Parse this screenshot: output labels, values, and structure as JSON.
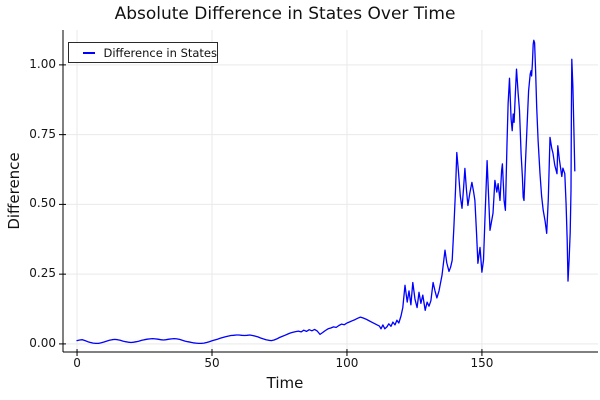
{
  "title": "Absolute Difference in States Over Time",
  "xlabel": "Time",
  "ylabel": "Difference",
  "legend": {
    "label": "Difference in States",
    "position": "top-left"
  },
  "colors": {
    "line": "#0000ff",
    "grid": "#e9e9e9",
    "spine": "#000000",
    "text": "#111111",
    "background": "#ffffff"
  },
  "chart_data": {
    "type": "line",
    "title": "Absolute Difference in States Over Time",
    "xlabel": "Time",
    "ylabel": "Difference",
    "grid": true,
    "legend_position": "top-left",
    "xlim": [
      -5.2,
      193.0
    ],
    "ylim": [
      -0.029,
      1.125
    ],
    "xticks": [
      0,
      50,
      100,
      150
    ],
    "xtick_labels": [
      "0",
      "50",
      "100",
      "150"
    ],
    "yticks": [
      0.0,
      0.25,
      0.5,
      0.75,
      1.0
    ],
    "ytick_labels": [
      "0.00",
      "0.25",
      "0.50",
      "0.75",
      "1.00"
    ],
    "series": [
      {
        "name": "Difference in States",
        "color": "#0000ff",
        "points": [
          [
            0,
            0.012
          ],
          [
            1,
            0.014
          ],
          [
            2,
            0.015
          ],
          [
            3,
            0.012
          ],
          [
            4,
            0.008
          ],
          [
            5,
            0.005
          ],
          [
            6,
            0.003
          ],
          [
            7,
            0.002
          ],
          [
            8,
            0.002
          ],
          [
            9,
            0.004
          ],
          [
            10,
            0.007
          ],
          [
            11,
            0.01
          ],
          [
            12,
            0.013
          ],
          [
            13,
            0.015
          ],
          [
            14,
            0.016
          ],
          [
            15,
            0.015
          ],
          [
            16,
            0.013
          ],
          [
            17,
            0.01
          ],
          [
            18,
            0.008
          ],
          [
            19,
            0.006
          ],
          [
            20,
            0.005
          ],
          [
            21,
            0.006
          ],
          [
            22,
            0.008
          ],
          [
            23,
            0.01
          ],
          [
            24,
            0.013
          ],
          [
            25,
            0.015
          ],
          [
            26,
            0.017
          ],
          [
            27,
            0.018
          ],
          [
            28,
            0.019
          ],
          [
            29,
            0.018
          ],
          [
            30,
            0.017
          ],
          [
            31,
            0.015
          ],
          [
            32,
            0.014
          ],
          [
            33,
            0.015
          ],
          [
            34,
            0.017
          ],
          [
            35,
            0.018
          ],
          [
            36,
            0.019
          ],
          [
            37,
            0.018
          ],
          [
            38,
            0.016
          ],
          [
            39,
            0.013
          ],
          [
            40,
            0.01
          ],
          [
            41,
            0.008
          ],
          [
            42,
            0.006
          ],
          [
            43,
            0.004
          ],
          [
            44,
            0.003
          ],
          [
            45,
            0.002
          ],
          [
            46,
            0.002
          ],
          [
            47,
            0.003
          ],
          [
            48,
            0.005
          ],
          [
            49,
            0.008
          ],
          [
            50,
            0.011
          ],
          [
            51,
            0.014
          ],
          [
            52,
            0.017
          ],
          [
            53,
            0.02
          ],
          [
            54,
            0.023
          ],
          [
            55,
            0.026
          ],
          [
            56,
            0.028
          ],
          [
            57,
            0.03
          ],
          [
            58,
            0.031
          ],
          [
            59,
            0.032
          ],
          [
            60,
            0.032
          ],
          [
            61,
            0.031
          ],
          [
            62,
            0.03
          ],
          [
            63,
            0.031
          ],
          [
            64,
            0.032
          ],
          [
            65,
            0.03
          ],
          [
            66,
            0.028
          ],
          [
            67,
            0.025
          ],
          [
            68,
            0.021
          ],
          [
            69,
            0.018
          ],
          [
            70,
            0.015
          ],
          [
            71,
            0.013
          ],
          [
            72,
            0.012
          ],
          [
            73,
            0.014
          ],
          [
            74,
            0.018
          ],
          [
            75,
            0.023
          ],
          [
            76,
            0.027
          ],
          [
            77,
            0.031
          ],
          [
            78,
            0.035
          ],
          [
            79,
            0.039
          ],
          [
            80,
            0.042
          ],
          [
            81,
            0.044
          ],
          [
            82,
            0.046
          ],
          [
            83,
            0.043
          ],
          [
            84,
            0.049
          ],
          [
            85,
            0.045
          ],
          [
            86,
            0.051
          ],
          [
            87,
            0.047
          ],
          [
            88,
            0.052
          ],
          [
            89,
            0.046
          ],
          [
            90,
            0.034
          ],
          [
            91,
            0.041
          ],
          [
            92,
            0.048
          ],
          [
            93,
            0.054
          ],
          [
            94,
            0.057
          ],
          [
            95,
            0.061
          ],
          [
            96,
            0.059
          ],
          [
            97,
            0.066
          ],
          [
            98,
            0.071
          ],
          [
            99,
            0.069
          ],
          [
            100,
            0.075
          ],
          [
            101,
            0.079
          ],
          [
            102,
            0.083
          ],
          [
            103,
            0.087
          ],
          [
            104,
            0.092
          ],
          [
            105,
            0.096
          ],
          [
            106,
            0.093
          ],
          [
            107,
            0.089
          ],
          [
            108,
            0.084
          ],
          [
            109,
            0.079
          ],
          [
            110,
            0.074
          ],
          [
            111,
            0.069
          ],
          [
            112,
            0.064
          ],
          [
            112.6,
            0.054
          ],
          [
            113.3,
            0.068
          ],
          [
            114,
            0.054
          ],
          [
            114.8,
            0.061
          ],
          [
            115.5,
            0.072
          ],
          [
            116.3,
            0.063
          ],
          [
            117,
            0.078
          ],
          [
            117.8,
            0.068
          ],
          [
            118.5,
            0.085
          ],
          [
            119.2,
            0.075
          ],
          [
            120,
            0.1
          ],
          [
            120.7,
            0.13
          ],
          [
            121.5,
            0.21
          ],
          [
            122.3,
            0.15
          ],
          [
            123,
            0.19
          ],
          [
            123.7,
            0.14
          ],
          [
            124.4,
            0.22
          ],
          [
            125.2,
            0.16
          ],
          [
            126,
            0.13
          ],
          [
            126.7,
            0.185
          ],
          [
            127.4,
            0.145
          ],
          [
            128.1,
            0.175
          ],
          [
            129,
            0.12
          ],
          [
            129.7,
            0.15
          ],
          [
            130.4,
            0.135
          ],
          [
            131.1,
            0.155
          ],
          [
            131.9,
            0.22
          ],
          [
            132.6,
            0.19
          ],
          [
            133.3,
            0.165
          ],
          [
            134.1,
            0.19
          ],
          [
            135.2,
            0.246
          ],
          [
            136.3,
            0.336
          ],
          [
            137,
            0.29
          ],
          [
            137.8,
            0.26
          ],
          [
            138.4,
            0.275
          ],
          [
            139,
            0.3
          ],
          [
            139.6,
            0.42
          ],
          [
            140.2,
            0.55
          ],
          [
            140.7,
            0.686
          ],
          [
            141.3,
            0.62
          ],
          [
            142,
            0.53
          ],
          [
            142.6,
            0.486
          ],
          [
            143.2,
            0.56
          ],
          [
            143.7,
            0.629
          ],
          [
            144.3,
            0.55
          ],
          [
            144.8,
            0.496
          ],
          [
            145.5,
            0.54
          ],
          [
            146.3,
            0.579
          ],
          [
            146.9,
            0.545
          ],
          [
            147.4,
            0.514
          ],
          [
            148,
            0.4
          ],
          [
            148.5,
            0.289
          ],
          [
            149.3,
            0.346
          ],
          [
            150,
            0.257
          ],
          [
            150.6,
            0.3
          ],
          [
            151.1,
            0.443
          ],
          [
            151.9,
            0.657
          ],
          [
            152.5,
            0.52
          ],
          [
            153,
            0.407
          ],
          [
            153.6,
            0.44
          ],
          [
            154.1,
            0.468
          ],
          [
            154.8,
            0.586
          ],
          [
            155.5,
            0.544
          ],
          [
            156,
            0.574
          ],
          [
            156.7,
            0.514
          ],
          [
            157.3,
            0.621
          ],
          [
            157.6,
            0.645
          ],
          [
            158.2,
            0.514
          ],
          [
            158.7,
            0.479
          ],
          [
            159.3,
            0.717
          ],
          [
            159.7,
            0.86
          ],
          [
            160.2,
            0.952
          ],
          [
            160.8,
            0.806
          ],
          [
            161.2,
            0.764
          ],
          [
            161.6,
            0.824
          ],
          [
            161.9,
            0.794
          ],
          [
            162.3,
            0.877
          ],
          [
            162.8,
            0.985
          ],
          [
            163.4,
            0.9
          ],
          [
            163.9,
            0.836
          ],
          [
            164.5,
            0.681
          ],
          [
            165,
            0.598
          ],
          [
            165.3,
            0.526
          ],
          [
            165.6,
            0.514
          ],
          [
            166.1,
            0.645
          ],
          [
            166.7,
            0.776
          ],
          [
            167.3,
            0.907
          ],
          [
            167.9,
            0.967
          ],
          [
            168.2,
            0.979
          ],
          [
            168.4,
            0.96
          ],
          [
            168.7,
            1.005
          ],
          [
            169,
            1.074
          ],
          [
            169.2,
            1.088
          ],
          [
            169.5,
            1.079
          ],
          [
            169.9,
            0.979
          ],
          [
            170.3,
            0.848
          ],
          [
            170.8,
            0.729
          ],
          [
            171.5,
            0.61
          ],
          [
            172.1,
            0.53
          ],
          [
            172.7,
            0.479
          ],
          [
            173.4,
            0.44
          ],
          [
            174,
            0.396
          ],
          [
            174.6,
            0.52
          ],
          [
            175.2,
            0.74
          ],
          [
            175.9,
            0.7
          ],
          [
            176.3,
            0.685
          ],
          [
            177,
            0.64
          ],
          [
            177.8,
            0.61
          ],
          [
            178.1,
            0.71
          ],
          [
            178.7,
            0.66
          ],
          [
            179.3,
            0.62
          ],
          [
            179.6,
            0.6
          ],
          [
            180,
            0.63
          ],
          [
            180.7,
            0.61
          ],
          [
            181.2,
            0.5
          ],
          [
            181.6,
            0.37
          ],
          [
            181.9,
            0.225
          ],
          [
            182.3,
            0.3
          ],
          [
            182.7,
            0.4
          ],
          [
            183,
            0.55
          ],
          [
            183.15,
            0.84
          ],
          [
            183.3,
            1.02
          ],
          [
            183.7,
            0.92
          ],
          [
            184.1,
            0.75
          ],
          [
            184.4,
            0.62
          ]
        ]
      }
    ]
  }
}
